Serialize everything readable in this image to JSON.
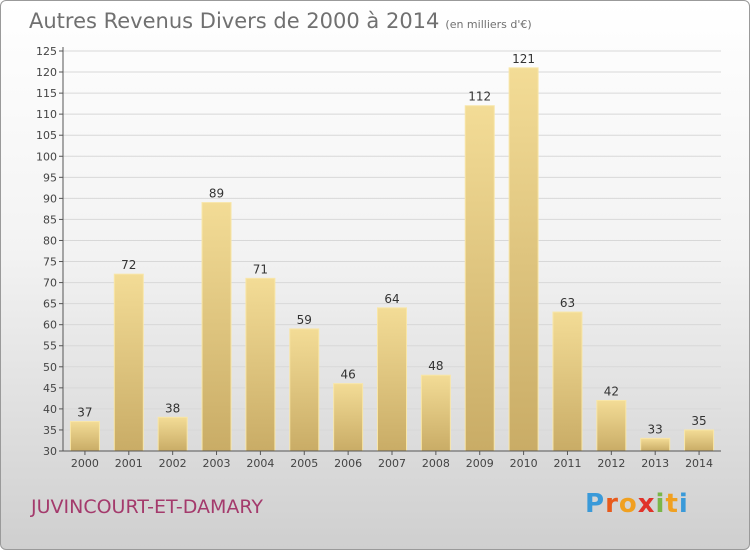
{
  "title": "Autres Revenus Divers de 2000 à 2014",
  "subtitle": "(en milliers d'€)",
  "city": "JUVINCOURT-ET-DAMARY",
  "logo": {
    "letters": [
      "P",
      "r",
      "o",
      "x",
      "i",
      "t",
      "i"
    ],
    "colors": [
      "#3a9ad9",
      "#e85a1b",
      "#f0a020",
      "#e0322a",
      "#7ab648",
      "#f0a020",
      "#3a9ad9"
    ]
  },
  "colors": {
    "bar": "#e9cf86",
    "bar_edge": "#f8e6a8",
    "axis": "#555555",
    "grid": "#d8d8d8"
  },
  "chart_data": {
    "type": "bar",
    "categories": [
      "2000",
      "2001",
      "2002",
      "2003",
      "2004",
      "2005",
      "2006",
      "2007",
      "2008",
      "2009",
      "2010",
      "2011",
      "2012",
      "2013",
      "2014"
    ],
    "values": [
      37,
      72,
      38,
      89,
      71,
      59,
      46,
      64,
      48,
      112,
      121,
      63,
      42,
      33,
      35
    ],
    "ylim": [
      30,
      125
    ],
    "yticks": [
      30,
      35,
      40,
      45,
      50,
      55,
      60,
      65,
      70,
      75,
      80,
      85,
      90,
      95,
      100,
      105,
      110,
      115,
      120,
      125
    ],
    "grid": "horizontal",
    "data_labels": true
  }
}
